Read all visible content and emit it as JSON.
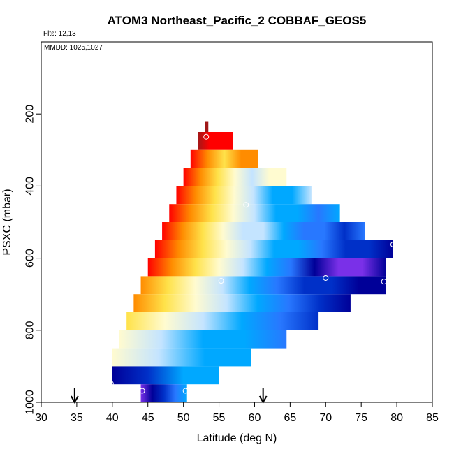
{
  "chart_data": {
    "type": "heatmap",
    "title": "ATOM3 Northeast_Pacific_2 COBBAF_GEOS5",
    "flights_note": "Flts: 12,13",
    "dates_note": "MMDD: 1025,1027",
    "xlabel": "Latitude (deg N)",
    "ylabel": "PSXC (mbar)",
    "xlim": [
      30,
      85
    ],
    "ylim": [
      1000,
      0
    ],
    "x_ticks": [
      30,
      35,
      40,
      45,
      50,
      55,
      60,
      65,
      70,
      75,
      80,
      85
    ],
    "y_ticks": [
      200,
      400,
      600,
      800,
      1000
    ],
    "grid": false,
    "legend": "none",
    "colors": {
      "dark_red": "#a01818",
      "red": "#ff0000",
      "orange": "#ff8c00",
      "yellow": "#ffe24a",
      "pale_yellow": "#fffbd0",
      "pale_blue": "#c4e4ff",
      "sky_blue": "#00a8ff",
      "mid_blue": "#2878ff",
      "blue": "#0030c8",
      "navy": "#000098",
      "purple": "#7a30e8"
    },
    "rows": [
      {
        "p_min": 220,
        "p_max": 250,
        "lat_min": 53.0,
        "lat_max": 53.5,
        "stops": [
          "dark_red",
          "dark_red"
        ]
      },
      {
        "p_min": 250,
        "p_max": 300,
        "lat_min": 52.0,
        "lat_max": 57.0,
        "stops": [
          "dark_red",
          "red",
          "red",
          "red"
        ]
      },
      {
        "p_min": 300,
        "p_max": 350,
        "lat_min": 51.0,
        "lat_max": 60.5,
        "stops": [
          "red",
          "orange",
          "yellow",
          "orange",
          "orange"
        ]
      },
      {
        "p_min": 350,
        "p_max": 400,
        "lat_min": 50.0,
        "lat_max": 64.5,
        "stops": [
          "red",
          "orange",
          "yellow",
          "pale_yellow",
          "pale_blue",
          "pale_yellow",
          "pale_yellow"
        ]
      },
      {
        "p_min": 400,
        "p_max": 450,
        "lat_min": 49.0,
        "lat_max": 68.0,
        "stops": [
          "red",
          "orange",
          "yellow",
          "pale_yellow",
          "pale_blue",
          "sky_blue",
          "sky_blue",
          "pale_blue"
        ]
      },
      {
        "p_min": 450,
        "p_max": 500,
        "lat_min": 48.0,
        "lat_max": 72.0,
        "stops": [
          "red",
          "orange",
          "yellow",
          "pale_yellow",
          "pale_blue",
          "sky_blue",
          "sky_blue",
          "mid_blue",
          "sky_blue"
        ]
      },
      {
        "p_min": 500,
        "p_max": 550,
        "lat_min": 47.0,
        "lat_max": 75.5,
        "stops": [
          "red",
          "orange",
          "yellow",
          "pale_yellow",
          "pale_blue",
          "pale_blue",
          "sky_blue",
          "mid_blue",
          "mid_blue",
          "blue",
          "mid_blue"
        ]
      },
      {
        "p_min": 550,
        "p_max": 600,
        "lat_min": 46.0,
        "lat_max": 79.5,
        "stops": [
          "red",
          "orange",
          "yellow",
          "pale_yellow",
          "pale_blue",
          "sky_blue",
          "sky_blue",
          "mid_blue",
          "blue",
          "blue",
          "navy"
        ]
      },
      {
        "p_min": 600,
        "p_max": 650,
        "lat_min": 45.0,
        "lat_max": 78.5,
        "stops": [
          "red",
          "orange",
          "yellow",
          "pale_yellow",
          "pale_blue",
          "sky_blue",
          "mid_blue",
          "navy",
          "purple",
          "purple",
          "navy"
        ]
      },
      {
        "p_min": 650,
        "p_max": 700,
        "lat_min": 44.0,
        "lat_max": 78.5,
        "stops": [
          "orange",
          "yellow",
          "pale_yellow",
          "pale_blue",
          "sky_blue",
          "mid_blue",
          "blue",
          "blue",
          "navy",
          "navy"
        ]
      },
      {
        "p_min": 700,
        "p_max": 750,
        "lat_min": 43.0,
        "lat_max": 73.5,
        "stops": [
          "orange",
          "yellow",
          "pale_yellow",
          "pale_blue",
          "sky_blue",
          "mid_blue",
          "blue",
          "navy"
        ]
      },
      {
        "p_min": 750,
        "p_max": 800,
        "lat_min": 42.0,
        "lat_max": 69.0,
        "stops": [
          "yellow",
          "pale_yellow",
          "pale_blue",
          "sky_blue",
          "mid_blue",
          "blue"
        ]
      },
      {
        "p_min": 800,
        "p_max": 850,
        "lat_min": 41.0,
        "lat_max": 64.5,
        "stops": [
          "pale_yellow",
          "pale_blue",
          "sky_blue",
          "sky_blue",
          "mid_blue"
        ]
      },
      {
        "p_min": 850,
        "p_max": 900,
        "lat_min": 40.0,
        "lat_max": 59.5,
        "stops": [
          "pale_yellow",
          "pale_blue",
          "sky_blue",
          "sky_blue"
        ]
      },
      {
        "p_min": 900,
        "p_max": 950,
        "lat_min": 40.0,
        "lat_max": 55.0,
        "stops": [
          "navy",
          "blue",
          "sky_blue",
          "sky_blue"
        ]
      },
      {
        "p_min": 950,
        "p_max": 1000,
        "lat_min": 44.0,
        "lat_max": 50.5,
        "stops": [
          "purple",
          "navy",
          "blue",
          "mid_blue",
          "sky_blue"
        ]
      }
    ],
    "points": [
      {
        "lat": 53.2,
        "p": 263
      },
      {
        "lat": 58.8,
        "p": 452
      },
      {
        "lat": 55.3,
        "p": 663
      },
      {
        "lat": 79.5,
        "p": 562
      },
      {
        "lat": 70.0,
        "p": 655
      },
      {
        "lat": 78.2,
        "p": 665
      },
      {
        "lat": 39.8,
        "p": 948
      },
      {
        "lat": 44.2,
        "p": 968
      },
      {
        "lat": 50.3,
        "p": 968
      }
    ],
    "arrows": [
      {
        "lat": 34.7
      },
      {
        "lat": 61.2
      }
    ]
  }
}
